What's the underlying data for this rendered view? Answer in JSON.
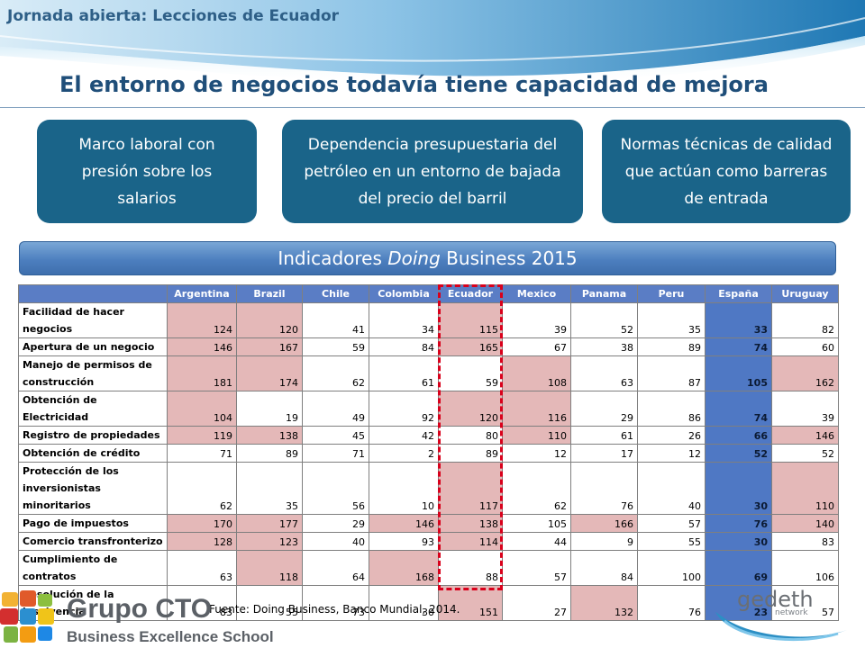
{
  "header": {
    "top_label": "Jornada abierta: Lecciones de Ecuador",
    "title": "El entorno de negocios todavía tiene capacidad de mejora"
  },
  "cards": [
    "Marco laboral con presión sobre los salarios",
    "Dependencia presupuestaria del petróleo en un entorno de bajada del precio del barril",
    "Normas técnicas de calidad que actúan como barreras de entrada"
  ],
  "indicators": {
    "prefix": "Indicadores ",
    "italic": "Doing",
    "suffix": " Business 2015"
  },
  "table": {
    "columns": [
      "Argentina",
      "Brazil",
      "Chile",
      "Colombia",
      "Ecuador",
      "Mexico",
      "Panama",
      "Peru",
      "España",
      "Uruguay"
    ],
    "rows": [
      {
        "label_lines": [
          "Facilidad de hacer",
          "negocios"
        ],
        "values": [
          "124",
          "120",
          "41",
          "34",
          "115",
          "39",
          "52",
          "35",
          "33",
          "82"
        ],
        "highlight": [
          true,
          true,
          false,
          false,
          true,
          false,
          false,
          false,
          false,
          false
        ]
      },
      {
        "label_lines": [
          "Apertura de un negocio"
        ],
        "values": [
          "146",
          "167",
          "59",
          "84",
          "165",
          "67",
          "38",
          "89",
          "74",
          "60"
        ],
        "highlight": [
          true,
          true,
          false,
          false,
          true,
          false,
          false,
          false,
          false,
          false
        ]
      },
      {
        "label_lines": [
          "Manejo de permisos de",
          "construcción"
        ],
        "values": [
          "181",
          "174",
          "62",
          "61",
          "59",
          "108",
          "63",
          "87",
          "105",
          "162"
        ],
        "highlight": [
          true,
          true,
          false,
          false,
          false,
          true,
          false,
          false,
          false,
          true
        ]
      },
      {
        "label_lines": [
          "Obtención de Electricidad"
        ],
        "values": [
          "104",
          "19",
          "49",
          "92",
          "120",
          "116",
          "29",
          "86",
          "74",
          "39"
        ],
        "highlight": [
          true,
          false,
          false,
          false,
          true,
          true,
          false,
          false,
          false,
          false
        ]
      },
      {
        "label_lines": [
          "Registro de propiedades"
        ],
        "values": [
          "119",
          "138",
          "45",
          "42",
          "80",
          "110",
          "61",
          "26",
          "66",
          "146"
        ],
        "highlight": [
          true,
          true,
          false,
          false,
          false,
          true,
          false,
          false,
          false,
          true
        ]
      },
      {
        "label_lines": [
          "Obtención de crédito"
        ],
        "values": [
          "71",
          "89",
          "71",
          "2",
          "89",
          "12",
          "17",
          "12",
          "52",
          "52"
        ],
        "highlight": [
          false,
          false,
          false,
          false,
          false,
          false,
          false,
          false,
          false,
          false
        ]
      },
      {
        "label_lines": [
          "Protección de los",
          "inversionistas minoritarios"
        ],
        "values": [
          "62",
          "35",
          "56",
          "10",
          "117",
          "62",
          "76",
          "40",
          "30",
          "110"
        ],
        "highlight": [
          false,
          false,
          false,
          false,
          true,
          false,
          false,
          false,
          false,
          true
        ]
      },
      {
        "label_lines": [
          "Pago de impuestos"
        ],
        "values": [
          "170",
          "177",
          "29",
          "146",
          "138",
          "105",
          "166",
          "57",
          "76",
          "140"
        ],
        "highlight": [
          true,
          true,
          false,
          true,
          true,
          false,
          true,
          false,
          false,
          true
        ]
      },
      {
        "label_lines": [
          "Comercio transfronterizo"
        ],
        "values": [
          "128",
          "123",
          "40",
          "93",
          "114",
          "44",
          "9",
          "55",
          "30",
          "83"
        ],
        "highlight": [
          true,
          true,
          false,
          false,
          true,
          false,
          false,
          false,
          false,
          false
        ]
      },
      {
        "label_lines": [
          "Cumplimiento de",
          "contratos"
        ],
        "values": [
          "63",
          "118",
          "64",
          "168",
          "88",
          "57",
          "84",
          "100",
          "69",
          "106"
        ],
        "highlight": [
          false,
          true,
          false,
          true,
          false,
          false,
          false,
          false,
          false,
          false
        ]
      },
      {
        "label_lines": [
          "Resolución de la",
          "insolvencia"
        ],
        "values": [
          "83",
          "55",
          "73",
          "30",
          "151",
          "27",
          "132",
          "76",
          "23",
          "57"
        ],
        "highlight": [
          false,
          false,
          false,
          false,
          true,
          false,
          true,
          false,
          false,
          false
        ]
      }
    ]
  },
  "source": "Fuente: Doing Business, Banco Mundial, 2014.",
  "logos": {
    "cto_main": "Grupo CTO",
    "cto_sub": "Business Excellence School",
    "gedeth_main": "gedeth",
    "gedeth_sub": "network"
  },
  "colors": {
    "header_blue": "#2a7fb0",
    "card_blue": "#1a6489",
    "table_header": "#5a7dc5",
    "highlight_red": "#e4b8b8",
    "espana_col": "#4f78c4",
    "ecuador_dash": "#d9001b"
  }
}
